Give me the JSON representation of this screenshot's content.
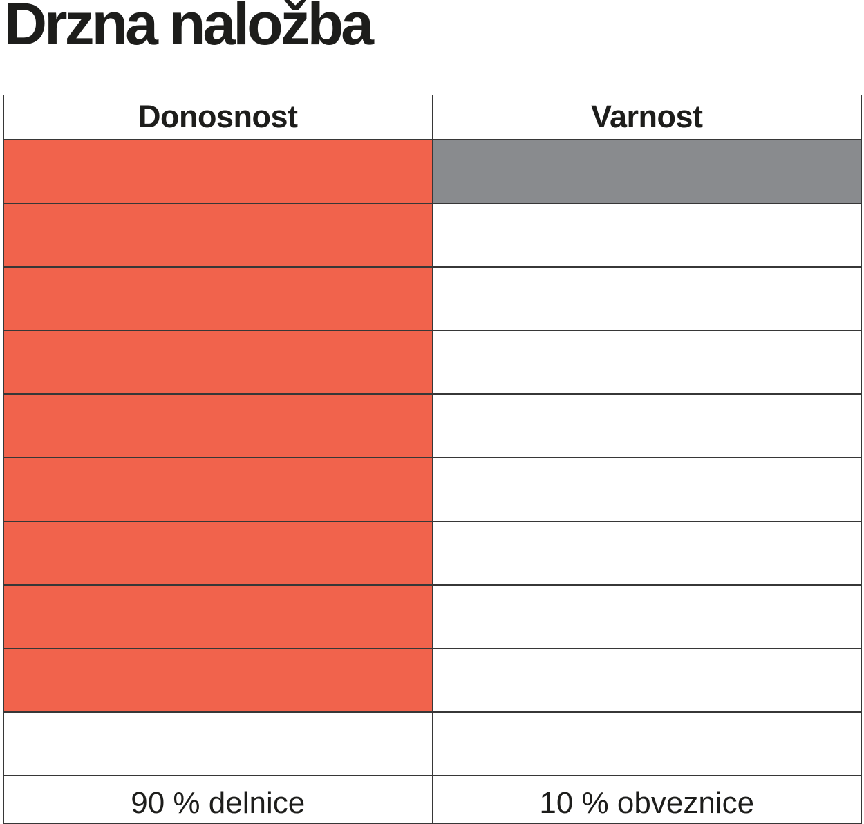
{
  "title": "Drzna naložba",
  "table": {
    "headers": [
      "Donosnost",
      "Varnost"
    ],
    "footer_labels": [
      "90 % delnice",
      "10 % obveznice"
    ]
  },
  "chart_data": {
    "type": "table",
    "title": "Drzna naložba",
    "categories": [
      "Donosnost",
      "Varnost"
    ],
    "values": [
      9,
      1
    ],
    "total_rows": 10,
    "value_labels": [
      "90 % delnice",
      "10 % obveznice"
    ],
    "colors": [
      "#F1634C",
      "#898B8E"
    ],
    "legend_position": "none",
    "grid": true
  },
  "colors": {
    "donosnost_fill": "#F1634C",
    "varnost_fill": "#898B8E",
    "border": "#373737",
    "text": "#1d1d1b",
    "background": "#ffffff"
  }
}
